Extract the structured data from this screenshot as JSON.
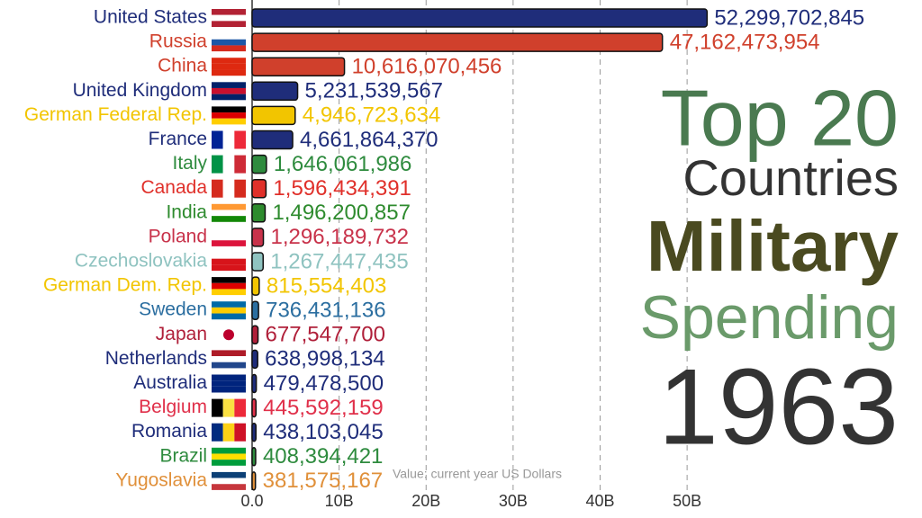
{
  "chart_data": {
    "type": "bar",
    "orientation": "horizontal",
    "title": [
      "Top 20",
      "Countries",
      "Military",
      "Spending",
      "1963"
    ],
    "x_label": "Value: current year US Dollars",
    "categories": [
      "United States",
      "Russia",
      "China",
      "United Kingdom",
      "German Federal Rep.",
      "France",
      "Italy",
      "Canada",
      "India",
      "Poland",
      "Czechoslovakia",
      "German Dem. Rep.",
      "Sweden",
      "Japan",
      "Netherlands",
      "Australia",
      "Belgium",
      "Romania",
      "Brazil",
      "Yugoslavia"
    ],
    "values": [
      52299702845,
      47162473954,
      10616070456,
      5231539567,
      4946723634,
      4661864370,
      1646061986,
      1596434391,
      1496200857,
      1296189732,
      1267447435,
      815554403,
      736431136,
      677547700,
      638998134,
      479478500,
      445592159,
      438103045,
      408394421,
      381575167
    ],
    "value_labels": [
      "52,299,702,845",
      "47,162,473,954",
      "10,616,070,456",
      "5,231,539,567",
      "4,946,723,634",
      "4,661,864,370",
      "1,646,061,986",
      "1,596,434,391",
      "1,496,200,857",
      "1,296,189,732",
      "1,267,447,435",
      "815,554,403",
      "736,431,136",
      "677,547,700",
      "638,998,134",
      "479,478,500",
      "445,592,159",
      "438,103,045",
      "408,394,421",
      "381,575,167"
    ],
    "colors": [
      "#1f2d7a",
      "#d0402c",
      "#d0402c",
      "#1f2d7a",
      "#f2c500",
      "#1f2d7a",
      "#2e8b3e",
      "#e0302a",
      "#2e8b2e",
      "#c8324a",
      "#8fc3c0",
      "#f2c500",
      "#2b6ea0",
      "#b0203a",
      "#1f2d7a",
      "#1f2d7a",
      "#e0304a",
      "#1f2d7a",
      "#2e8b3e",
      "#e0903a"
    ],
    "xlim": [
      0,
      77000000000
    ],
    "xticks": [
      {
        "value": 0,
        "label": "0.0"
      },
      {
        "value": 10000000000,
        "label": "10B"
      },
      {
        "value": 20000000000,
        "label": "20B"
      },
      {
        "value": 30000000000,
        "label": "30B"
      },
      {
        "value": 40000000000,
        "label": "40B"
      },
      {
        "value": 50000000000,
        "label": "50B"
      }
    ],
    "grid": true
  }
}
